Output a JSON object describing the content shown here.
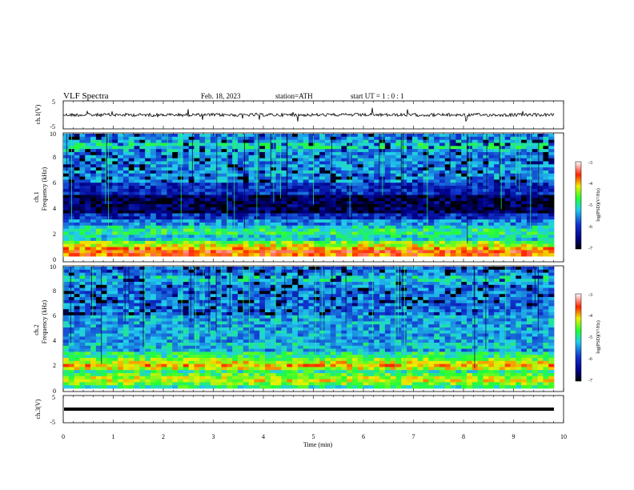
{
  "header": {
    "title": "VLF  Spectra",
    "date": "Feb. 18, 2023",
    "station": "station=ATH",
    "start": "start  UT  =     1 : 0  : 1"
  },
  "colors": {
    "spectrum_low": "#000000",
    "spectrum_mid_low": "#1133cc",
    "spectrum_mid": "#22ccee",
    "spectrum_high": "#22ff33",
    "spectrum_top": "#ff0000",
    "waveform": "#000000"
  },
  "chart_data": [
    {
      "type": "line",
      "name_label": "ch.1(V)",
      "xlim": [
        0,
        10
      ],
      "ylim": [
        -5,
        5
      ],
      "y_ticks": [
        "5",
        "-5"
      ],
      "description": "ch.1 time-series waveform, fluctuating near -0.5 V with spikes"
    },
    {
      "type": "heatmap",
      "ylabel_channel": "ch.1",
      "ylabel": "Frequency  (kHz)",
      "xlim": [
        0,
        10
      ],
      "ylim": [
        0,
        10
      ],
      "y_ticks": [
        "0",
        "2",
        "4",
        "6",
        "8",
        "10"
      ],
      "colorbar": {
        "label": "log(PSD)(V²/Hz)",
        "range": [
          -7,
          -3
        ],
        "ticks": [
          "-3",
          "-4",
          "-5",
          "-6",
          "-7"
        ]
      },
      "bands": [
        {
          "freq": 0.3,
          "level": -3.6
        },
        {
          "freq": 0.8,
          "level": -4.2
        },
        {
          "freq": 1.3,
          "level": -5.2
        },
        {
          "freq": 2.0,
          "level": -4.8
        },
        {
          "freq": 4.4,
          "level": -6.8
        },
        {
          "freq": 9.0,
          "level": -5.0
        }
      ]
    },
    {
      "type": "heatmap",
      "ylabel_channel": "ch.2",
      "ylabel": "Frequency  (kHz)",
      "xlim": [
        0,
        10
      ],
      "ylim": [
        0,
        10
      ],
      "y_ticks": [
        "0",
        "2",
        "4",
        "6",
        "8",
        "10"
      ],
      "colorbar": {
        "label": "log(PSD)(V²/Hz)",
        "range": [
          -7,
          -3
        ],
        "ticks": [
          "-3",
          "-4",
          "-5",
          "-6",
          "-7"
        ]
      },
      "bands": [
        {
          "freq": 0.7,
          "level": -4.2
        },
        {
          "freq": 1.9,
          "level": -4.0
        },
        {
          "freq": 2.5,
          "level": -4.8
        },
        {
          "freq": 3.5,
          "level": -5.2
        },
        {
          "freq": 5.5,
          "level": -5.6
        },
        {
          "freq": 9.0,
          "level": -5.1
        }
      ]
    },
    {
      "type": "line",
      "name_label": "ch.3(V)",
      "xlim": [
        0,
        10
      ],
      "ylim": [
        -5,
        5
      ],
      "y_ticks": [
        "5",
        "-5"
      ],
      "description": "ch.3 flat line at about -1.5 V"
    }
  ],
  "x_axis": {
    "label": "Time  (min)",
    "ticks": [
      "0",
      "1",
      "2",
      "3",
      "4",
      "5",
      "6",
      "7",
      "8",
      "9",
      "10"
    ]
  }
}
